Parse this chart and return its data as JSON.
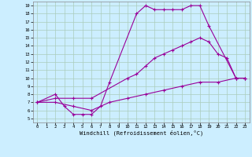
{
  "xlabel": "Windchill (Refroidissement éolien,°C)",
  "bg_color": "#cceeff",
  "line_color": "#990099",
  "grid_color": "#aaccbb",
  "xlim": [
    -0.5,
    23.5
  ],
  "ylim": [
    4.5,
    19.5
  ],
  "xticks": [
    0,
    1,
    2,
    3,
    4,
    5,
    6,
    7,
    8,
    9,
    10,
    11,
    12,
    13,
    14,
    15,
    16,
    17,
    18,
    19,
    20,
    21,
    22,
    23
  ],
  "yticks": [
    5,
    6,
    7,
    8,
    9,
    10,
    11,
    12,
    13,
    14,
    15,
    16,
    17,
    18,
    19
  ],
  "line1_x": [
    0,
    2,
    3,
    4,
    5,
    6,
    7,
    8,
    11,
    12,
    13,
    14,
    15,
    16,
    17,
    18,
    19,
    22,
    23
  ],
  "line1_y": [
    7,
    8,
    6.5,
    5.5,
    5.5,
    5.5,
    6.5,
    9.5,
    18,
    19,
    18.5,
    18.5,
    18.5,
    18.5,
    19,
    19,
    16.5,
    10,
    10
  ],
  "line2_x": [
    0,
    2,
    4,
    6,
    10,
    11,
    12,
    13,
    14,
    15,
    16,
    17,
    18,
    19,
    20,
    21,
    22,
    23
  ],
  "line2_y": [
    7,
    7.5,
    7.5,
    7.5,
    10,
    10.5,
    11.5,
    12.5,
    13,
    13.5,
    14,
    14.5,
    15,
    14.5,
    13,
    12.5,
    10,
    10
  ],
  "line3_x": [
    0,
    2,
    4,
    6,
    8,
    10,
    12,
    14,
    16,
    18,
    20,
    22,
    23
  ],
  "line3_y": [
    7,
    7,
    6.5,
    6.0,
    7.0,
    7.5,
    8.0,
    8.5,
    9.0,
    9.5,
    9.5,
    10,
    10
  ],
  "marker": "+",
  "markersize": 2.5,
  "linewidth": 0.8,
  "tick_fontsize": 4.0,
  "xlabel_fontsize": 5.0
}
